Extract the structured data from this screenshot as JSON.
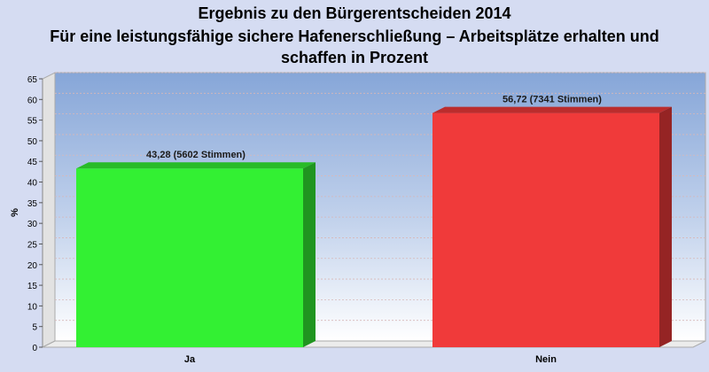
{
  "chart_data": {
    "type": "bar",
    "title_lines": [
      "Ergebnis zu den Bürgerentscheiden 2014",
      "Für eine leistungsfähige sichere Hafenerschließung – Arbeitsplätze erhalten und",
      "schaffen in Prozent"
    ],
    "categories": [
      "Ja",
      "Nein"
    ],
    "values": [
      43.28,
      56.72
    ],
    "data_labels": [
      "43,28 (5602 Stimmen)",
      "56,72 (7341 Stimmen)"
    ],
    "bar_colors": [
      "#33f033",
      "#f03a3a"
    ],
    "ylabel": "%",
    "xlabel": "",
    "ylim": [
      0,
      65
    ],
    "yticks": [
      0,
      5,
      10,
      15,
      20,
      25,
      30,
      35,
      40,
      45,
      50,
      55,
      60,
      65
    ],
    "grid": true,
    "legend": "none"
  }
}
